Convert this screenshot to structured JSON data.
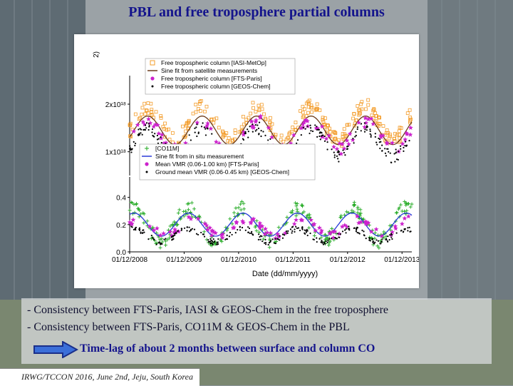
{
  "slide": {
    "title": "PBL and free troposphere partial columns",
    "bullet1": "- Consistency between FTS-Paris, IASI & GEOS-Chem in the free troposphere",
    "bullet2": "- Consistency between FTS-Paris, CO11M & GEOS-Chem in the PBL",
    "timelag": "Time-lag of about 2 months between surface and column CO",
    "footer": "IRWG/TCCON 2016, June 2nd, Jeju, South Korea",
    "arrow_icon": "right-arrow-icon",
    "accent_color": "#14148c",
    "arrow_color": "#3b6fd9"
  },
  "chart_data": [
    {
      "type": "scatter",
      "panel": "top",
      "ylabel_partial": "2)",
      "yticks": [
        "2x10¹⁸",
        "1x10¹⁸"
      ],
      "ytick_values": [
        2e+18,
        1e+18
      ],
      "ylim": [
        5e+17,
        2.6e+18
      ],
      "legend": [
        {
          "label": "Free tropospheric column [IASI-MetOp]",
          "marker": "square",
          "color": "#f39c2a"
        },
        {
          "label": "Sine fit from satellite measurements",
          "marker": "line",
          "color": "#6b3b1a"
        },
        {
          "label": "Free tropospheric column [FTS-Paris]",
          "marker": "star",
          "color": "#cc22cc"
        },
        {
          "label": "Free tropospheric column [GEOS-Chem]",
          "marker": "dot",
          "color": "#000000"
        }
      ],
      "x_start_year": 2008.92,
      "x_end_year": 2014.1,
      "series": [
        {
          "name": "Free tropospheric column [IASI-MetOp]",
          "seasonal_mean": 1.6e+18,
          "seasonal_amplitude": 3.5e+17,
          "peak_month": 4
        },
        {
          "name": "Sine fit from satellite measurements",
          "mean": 1.45e+18,
          "amplitude": 3e+17,
          "peak_month": 4
        },
        {
          "name": "Free tropospheric column [FTS-Paris]",
          "seasonal_mean": 1.35e+18,
          "seasonal_amplitude": 3e+17,
          "peak_month": 4
        },
        {
          "name": "Free tropospheric column [GEOS-Chem]",
          "seasonal_mean": 1.2e+18,
          "seasonal_amplitude": 3e+17,
          "peak_month": 4
        }
      ]
    },
    {
      "type": "scatter",
      "panel": "bottom",
      "yticks": [
        "0.4",
        "0.2",
        "0.0"
      ],
      "ytick_values": [
        0.4,
        0.2,
        0.0
      ],
      "ylim": [
        0.0,
        0.55
      ],
      "legend": [
        {
          "label": "[CO11M]",
          "marker": "plus",
          "color": "#22aa22"
        },
        {
          "label": "Sine fit from in situ measurement",
          "marker": "line",
          "color": "#2a3bd8"
        },
        {
          "label": "Mean VMR (0.06-1.00 km) [FTS-Paris]",
          "marker": "star",
          "color": "#cc22cc"
        },
        {
          "label": "Ground mean VMR (0.06-0.45 km) [GEOS-Chem]",
          "marker": "dot",
          "color": "#000000"
        }
      ],
      "xlabel": "Date (dd/mm/yyyy)",
      "xticks": [
        "01/12/2008",
        "01/12/2009",
        "01/12/2010",
        "01/12/2011",
        "01/12/2012",
        "01/12/2013"
      ],
      "xtick_years": [
        2008.92,
        2009.92,
        2010.92,
        2011.92,
        2012.92,
        2013.92
      ],
      "x_start_year": 2008.92,
      "x_end_year": 2014.1,
      "series": [
        {
          "name": "[CO11M]",
          "seasonal_mean": 0.2,
          "seasonal_amplitude": 0.12,
          "peak_month": 1
        },
        {
          "name": "Sine fit from in situ measurement",
          "mean": 0.2,
          "amplitude": 0.085,
          "peak_month": 1
        },
        {
          "name": "Mean VMR (0.06-1.00 km) [FTS-Paris]",
          "seasonal_mean": 0.18,
          "seasonal_amplitude": 0.06,
          "peak_month": 2
        },
        {
          "name": "Ground mean VMR (0.06-0.45 km) [GEOS-Chem]",
          "seasonal_mean": 0.12,
          "seasonal_amplitude": 0.05,
          "peak_month": 1
        }
      ]
    }
  ]
}
